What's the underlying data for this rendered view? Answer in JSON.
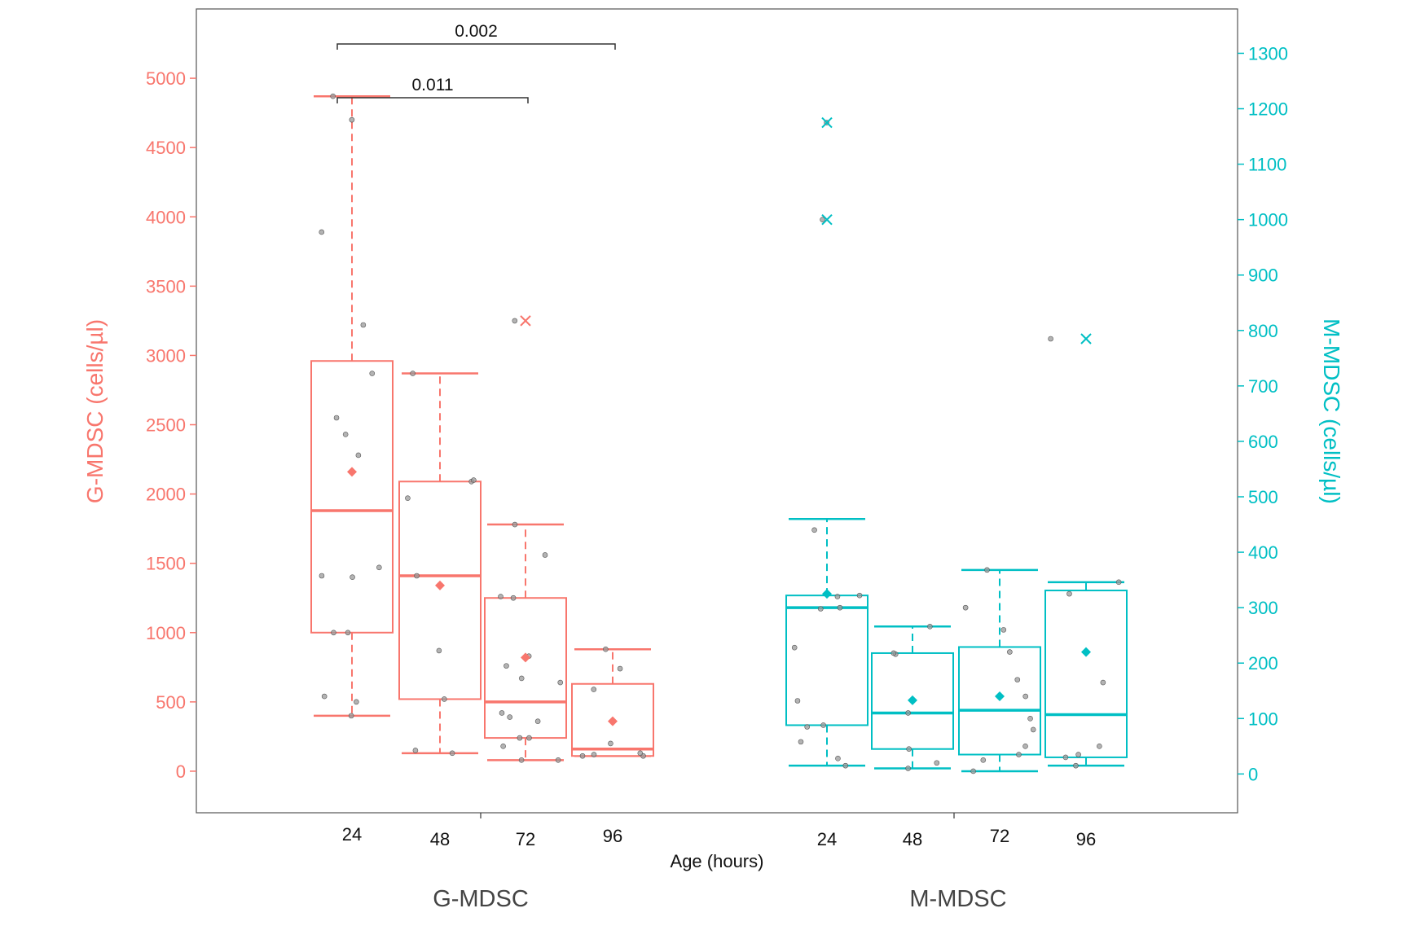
{
  "chart_data": {
    "type": "box",
    "xlabel": "Age (hours)",
    "left_axis": {
      "label": "G-MDSC (cells/µl)",
      "color": "#F8766D",
      "range": [
        -300,
        5500
      ],
      "ticks": [
        0,
        500,
        1000,
        1500,
        2000,
        2500,
        3000,
        3500,
        4000,
        4500,
        5000
      ]
    },
    "right_axis": {
      "label": "M-MDSC (cells/µl)",
      "color": "#00BFC4",
      "range": [
        -70,
        1380
      ],
      "ticks": [
        0,
        100,
        200,
        300,
        400,
        500,
        600,
        700,
        800,
        900,
        1000,
        1100,
        1200,
        1300
      ]
    },
    "groups": [
      {
        "name": "G-MDSC",
        "axis": "left",
        "color": "#F8766D",
        "boxes": [
          {
            "age": "24",
            "min": 400,
            "q1": 1000,
            "median": 1880,
            "q3": 2960,
            "max": 4870,
            "mean": 2160,
            "outliers": [],
            "points": [
              400,
              500,
              540,
              1000,
              1000,
              1400,
              1410,
              1470,
              2280,
              2430,
              2550,
              2870,
              3220,
              3890,
              4700,
              4870
            ]
          },
          {
            "age": "48",
            "min": 130,
            "q1": 520,
            "median": 1410,
            "q3": 2090,
            "max": 2870,
            "mean": 1340,
            "outliers": [],
            "points": [
              130,
              150,
              520,
              870,
              1410,
              1970,
              2090,
              2100,
              2870
            ]
          },
          {
            "age": "72",
            "min": 80,
            "q1": 240,
            "median": 500,
            "q3": 1250,
            "max": 1780,
            "mean": 820,
            "outliers": [
              3250
            ],
            "points": [
              80,
              80,
              180,
              240,
              240,
              360,
              390,
              420,
              640,
              670,
              760,
              830,
              1250,
              1260,
              1560,
              1780,
              3250
            ]
          },
          {
            "age": "96",
            "min": 110,
            "q1": 110,
            "median": 160,
            "q3": 630,
            "max": 880,
            "mean": 360,
            "outliers": [],
            "points": [
              110,
              110,
              120,
              130,
              200,
              590,
              740,
              880
            ]
          }
        ]
      },
      {
        "name": "M-MDSC",
        "axis": "right",
        "color": "#00BFC4",
        "boxes": [
          {
            "age": "24",
            "min": 15,
            "q1": 88,
            "median": 300,
            "q3": 322,
            "max": 460,
            "mean": 325,
            "outliers": [
              1175,
              1000
            ],
            "points": [
              15,
              28,
              58,
              85,
              88,
              132,
              228,
              298,
              300,
              320,
              322,
              440,
              1000,
              1175
            ]
          },
          {
            "age": "48",
            "min": 10,
            "q1": 45,
            "median": 110,
            "q3": 218,
            "max": 266,
            "mean": 133,
            "outliers": [],
            "points": [
              10,
              20,
              45,
              110,
              216,
              218,
              266
            ]
          },
          {
            "age": "72",
            "min": 5,
            "q1": 35,
            "median": 115,
            "q3": 229,
            "max": 368,
            "mean": 140,
            "outliers": [],
            "points": [
              5,
              25,
              35,
              50,
              80,
              100,
              140,
              170,
              220,
              260,
              300,
              368
            ]
          },
          {
            "age": "96",
            "min": 15,
            "q1": 30,
            "median": 107,
            "q3": 331,
            "max": 346,
            "mean": 220,
            "outliers": [
              785
            ],
            "points": [
              15,
              30,
              35,
              50,
              165,
              325,
              346,
              785
            ]
          }
        ]
      }
    ],
    "brackets": [
      {
        "from_age": "24",
        "to_age": "96",
        "label": "0.002"
      },
      {
        "from_age": "24",
        "to_age": "72",
        "label": "0.011"
      }
    ],
    "grid": false,
    "point_color": "#9a9a9a",
    "mean_marker": "diamond",
    "outlier_marker": "x"
  }
}
